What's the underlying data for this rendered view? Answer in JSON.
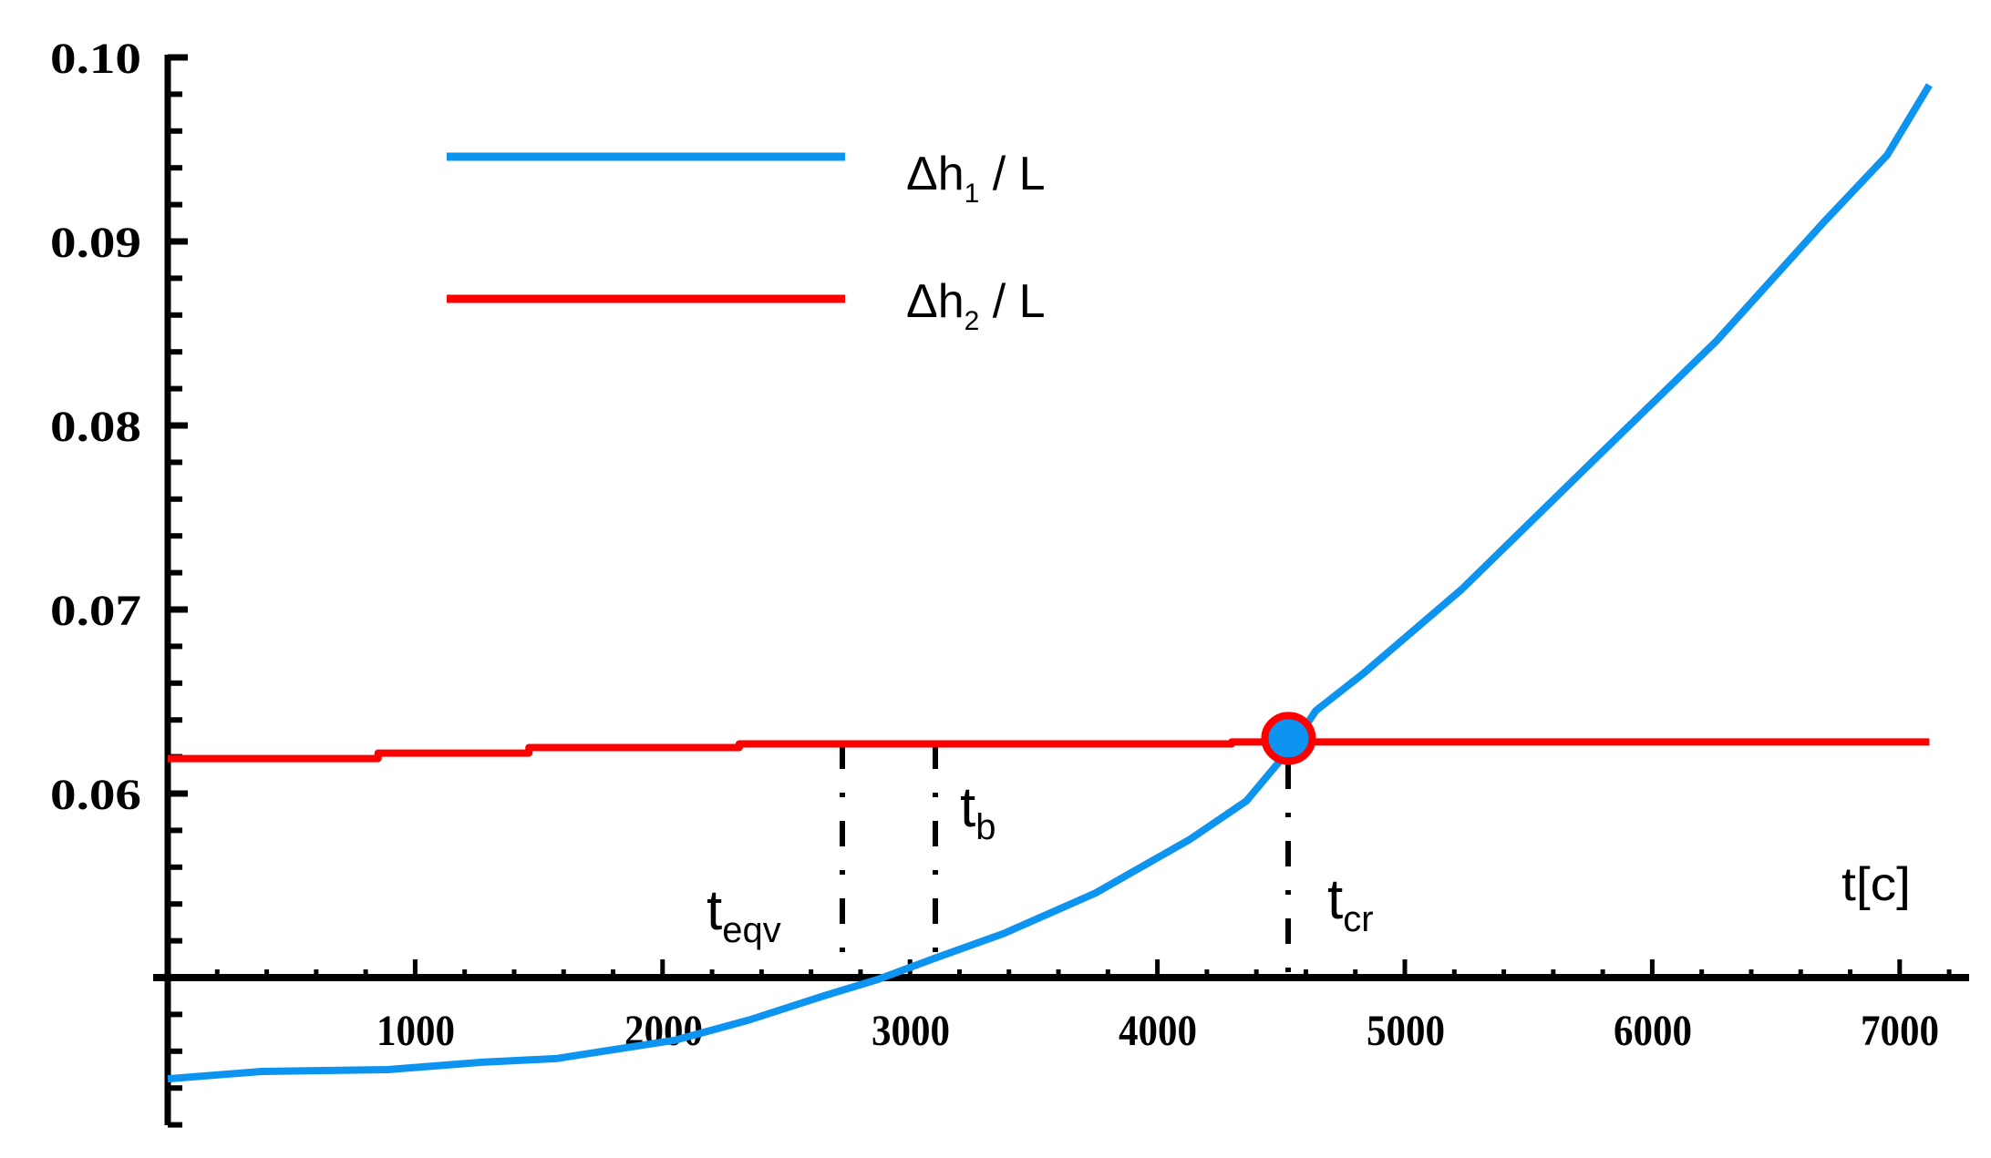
{
  "chart_data": {
    "type": "line",
    "title": "",
    "xlabel": "t[c]",
    "ylabel": "",
    "xlim": [
      0,
      7300
    ],
    "ylim": [
      0.042,
      0.1
    ],
    "x_axis_crosses_y_at": 0.05,
    "grid": false,
    "x_ticks": [
      1000,
      2000,
      3000,
      4000,
      5000,
      6000,
      7000
    ],
    "x_tick_labels": [
      "1000",
      "2000",
      "3000",
      "4000",
      "5000",
      "6000",
      "7000"
    ],
    "x_minor_step": 200,
    "y_ticks": [
      0.06,
      0.07,
      0.08,
      0.09,
      0.1
    ],
    "y_tick_labels": [
      "0.06",
      "0.07",
      "0.08",
      "0.09",
      "0.10"
    ],
    "y_minor_step": 0.002,
    "legend_position": "upper-left",
    "series": [
      {
        "name": "Δh1 / L",
        "label_main": "Δh",
        "label_sub": "1",
        "label_tail": " / L",
        "color": "#0d93f0",
        "x": [
          0,
          380,
          890,
          1270,
          1570,
          1760,
          2050,
          2350,
          2650,
          2870,
          3090,
          3380,
          3750,
          4130,
          4360,
          4540,
          4640,
          4830,
          5230,
          5770,
          6260,
          6690,
          6950,
          7120
        ],
        "y": [
          0.0445,
          0.0449,
          0.045,
          0.0454,
          0.0456,
          0.046,
          0.0466,
          0.0477,
          0.049,
          0.0499,
          0.051,
          0.0524,
          0.0546,
          0.0575,
          0.0596,
          0.0625,
          0.0645,
          0.0665,
          0.0711,
          0.0782,
          0.0846,
          0.091,
          0.0947,
          0.0985
        ]
      },
      {
        "name": "Δh2 / L",
        "label_main": "Δh",
        "label_sub": "2",
        "label_tail": " / L",
        "color": "#ff0000",
        "x": [
          0,
          850,
          850,
          1460,
          1460,
          2310,
          2310,
          4300,
          4300,
          7120
        ],
        "y": [
          0.0619,
          0.0619,
          0.0622,
          0.0622,
          0.0625,
          0.0625,
          0.0627,
          0.0627,
          0.0628,
          0.0628
        ]
      }
    ],
    "annotations": [
      {
        "id": "t_eqv",
        "main": "t",
        "sub": "eqv",
        "x": 2710,
        "style": "dash-dot vertical from Δh2 line to x-axis"
      },
      {
        "id": "t_b",
        "main": "t",
        "sub": "b",
        "x": 3100,
        "style": "dash-dot vertical from Δh2 line to x-axis"
      },
      {
        "id": "t_cr",
        "main": "t",
        "sub": "cr",
        "x": 4530,
        "style": "dash-dot vertical from intersection to x-axis"
      }
    ],
    "intersection_marker": {
      "x": 4530,
      "y": 0.063,
      "fill": "#0d93f0",
      "stroke": "#ff0000"
    }
  },
  "legend": {
    "item1": {
      "main": "Δh",
      "sub": "1",
      "tail": " / L"
    },
    "item2": {
      "main": "Δh",
      "sub": "2",
      "tail": " / L"
    }
  },
  "axes": {
    "x_title": "t[c]",
    "x_labels": [
      "1000",
      "2000",
      "3000",
      "4000",
      "5000",
      "6000",
      "7000"
    ],
    "y_labels": [
      "0.10",
      "0.09",
      "0.08",
      "0.07",
      "0.06"
    ]
  },
  "annotations": {
    "t_eqv": {
      "main": "t",
      "sub": "eqv"
    },
    "t_b": {
      "main": "t",
      "sub": "b"
    },
    "t_cr": {
      "main": "t",
      "sub": "cr"
    }
  }
}
